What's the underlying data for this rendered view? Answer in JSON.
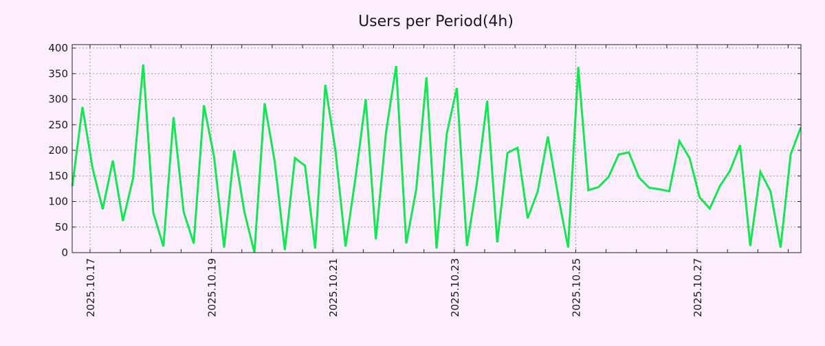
{
  "chart_data": {
    "type": "line",
    "title": "Users per Period(4h)",
    "xlabel": "",
    "ylabel": "",
    "ylim": [
      0,
      400
    ],
    "yticks": [
      0,
      50,
      100,
      150,
      200,
      250,
      300,
      350,
      400
    ],
    "xtick_labels": [
      "2025.10.17",
      "2025.10.19",
      "2025.10.21",
      "2025.10.23",
      "2025.10.25",
      "2025.10.27"
    ],
    "x_unit": "hours since 2025.10.17 00:00",
    "x_start": -7,
    "x_step": 4,
    "grid": true,
    "line_color": "#10e850",
    "series": [
      {
        "name": "Users",
        "values": [
          130,
          285,
          165,
          85,
          180,
          62,
          145,
          368,
          78,
          12,
          265,
          80,
          18,
          288,
          188,
          10,
          200,
          80,
          0,
          292,
          178,
          5,
          185,
          170,
          8,
          328,
          200,
          12,
          148,
          300,
          26,
          235,
          365,
          18,
          125,
          343,
          8,
          232,
          322,
          13,
          138,
          297,
          20,
          195,
          205,
          67,
          120,
          227,
          113,
          10,
          363,
          122,
          128,
          148,
          192,
          196,
          147,
          127,
          124,
          120,
          218,
          185,
          108,
          86,
          130,
          160,
          210,
          13,
          158,
          120,
          10,
          192,
          245
        ]
      }
    ]
  }
}
